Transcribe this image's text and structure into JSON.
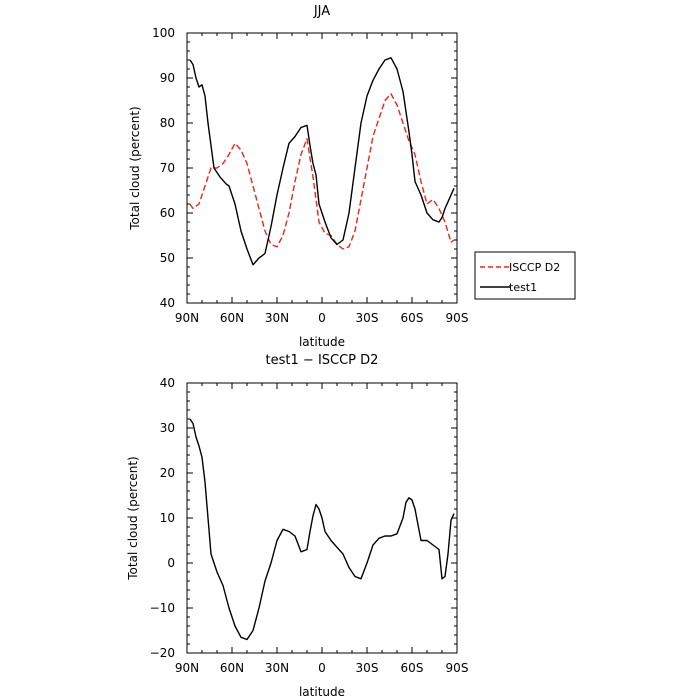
{
  "colors": {
    "isccp": "#e8261c",
    "test1": "#000000",
    "axis": "#000000",
    "background": "#ffffff"
  },
  "chart_data": [
    {
      "type": "line",
      "title": "JJA",
      "xlabel": "latitude",
      "ylabel": "Total cloud (percent)",
      "xlim": [
        -90,
        90
      ],
      "ylim": [
        40,
        100
      ],
      "x_ticks": [
        -90,
        -60,
        -30,
        0,
        30,
        60,
        90
      ],
      "x_tick_labels": [
        "90N",
        "60N",
        "30N",
        "0",
        "30S",
        "60S",
        "90S"
      ],
      "y_ticks": [
        40,
        50,
        60,
        70,
        80,
        90,
        100
      ],
      "y_tick_labels": [
        "40",
        "50",
        "60",
        "70",
        "80",
        "90",
        "100"
      ],
      "legend_position": "right",
      "series": [
        {
          "name": "ISCCP D2",
          "color": "#e8261c",
          "style": "dashed",
          "x": [
            -88,
            -86,
            -82,
            -78,
            -74,
            -70,
            -66,
            -62,
            -58,
            -54,
            -50,
            -46,
            -42,
            -38,
            -34,
            -30,
            -26,
            -22,
            -18,
            -14,
            -10,
            -6,
            -2,
            2,
            6,
            10,
            14,
            18,
            22,
            26,
            30,
            34,
            38,
            42,
            46,
            50,
            54,
            58,
            62,
            66,
            70,
            74,
            78,
            82,
            86,
            88
          ],
          "y": [
            62,
            61,
            62,
            66,
            70,
            70,
            71,
            73,
            75.5,
            74,
            71,
            66,
            61,
            56,
            53,
            52.5,
            55,
            60,
            67,
            73,
            76.5,
            68,
            58,
            55.5,
            55,
            53,
            52,
            52.5,
            56,
            63,
            70,
            77,
            81,
            85,
            86.5,
            84,
            80,
            76,
            73,
            67,
            62,
            63,
            61,
            58,
            53.5,
            54
          ]
        },
        {
          "name": "test1",
          "color": "#000000",
          "style": "solid",
          "x": [
            -88,
            -86,
            -84,
            -82,
            -80,
            -78,
            -76,
            -72,
            -68,
            -64,
            -62,
            -58,
            -54,
            -50,
            -46,
            -42,
            -40,
            -38,
            -34,
            -30,
            -26,
            -22,
            -18,
            -14,
            -10,
            -8,
            -6,
            -4,
            -2,
            2,
            6,
            10,
            14,
            18,
            22,
            26,
            30,
            34,
            38,
            42,
            46,
            50,
            54,
            58,
            60,
            62,
            66,
            70,
            74,
            78,
            80,
            82,
            84,
            86,
            88
          ],
          "y": [
            94,
            93,
            90,
            88,
            88.5,
            86,
            80,
            70,
            68,
            66.5,
            66,
            62,
            56,
            52,
            48.5,
            50,
            50.5,
            51,
            57,
            64,
            70,
            75.5,
            77,
            79,
            79.5,
            75,
            71,
            68.5,
            62,
            58,
            54.5,
            53,
            54,
            60,
            70,
            80,
            86,
            89.5,
            92,
            94,
            94.5,
            92,
            87,
            78,
            73,
            67,
            64,
            60,
            58.5,
            58,
            59,
            61,
            62.5,
            64,
            65.5
          ]
        }
      ]
    },
    {
      "type": "line",
      "title": "test1 − ISCCP D2",
      "xlabel": "latitude",
      "ylabel": "Total cloud (percent)",
      "xlim": [
        -90,
        90
      ],
      "ylim": [
        -20,
        40
      ],
      "x_ticks": [
        -90,
        -60,
        -30,
        0,
        30,
        60,
        90
      ],
      "x_tick_labels": [
        "90N",
        "60N",
        "30N",
        "0",
        "30S",
        "60S",
        "90S"
      ],
      "y_ticks": [
        -20,
        -10,
        0,
        10,
        20,
        30,
        40
      ],
      "y_tick_labels": [
        "−20",
        "−10",
        "0",
        "10",
        "20",
        "30",
        "40"
      ],
      "series": [
        {
          "color": "#000000",
          "style": "solid",
          "x": [
            -88,
            -86,
            -84,
            -82,
            -80,
            -78,
            -76,
            -74,
            -70,
            -66,
            -62,
            -58,
            -54,
            -50,
            -46,
            -42,
            -40,
            -38,
            -34,
            -30,
            -26,
            -22,
            -18,
            -14,
            -10,
            -8,
            -6,
            -4,
            -2,
            0,
            2,
            6,
            10,
            14,
            18,
            22,
            26,
            30,
            34,
            38,
            42,
            46,
            50,
            54,
            56,
            58,
            60,
            62,
            66,
            70,
            74,
            78,
            80,
            82,
            84,
            86,
            88
          ],
          "y": [
            32,
            31,
            28,
            26,
            23.5,
            18,
            10,
            2,
            -2,
            -5,
            -10,
            -14,
            -16.5,
            -17,
            -15,
            -10,
            -7,
            -4,
            0,
            5,
            7.5,
            7,
            6,
            2.5,
            3,
            7,
            10.5,
            13,
            12,
            10,
            7,
            5,
            3.5,
            2,
            -1,
            -3,
            -3.5,
            0,
            4,
            5.5,
            6,
            6,
            6.5,
            10,
            13.5,
            14.5,
            14,
            12,
            5,
            5,
            4,
            3,
            -3.5,
            -3,
            2,
            9.5,
            11
          ]
        }
      ]
    }
  ]
}
